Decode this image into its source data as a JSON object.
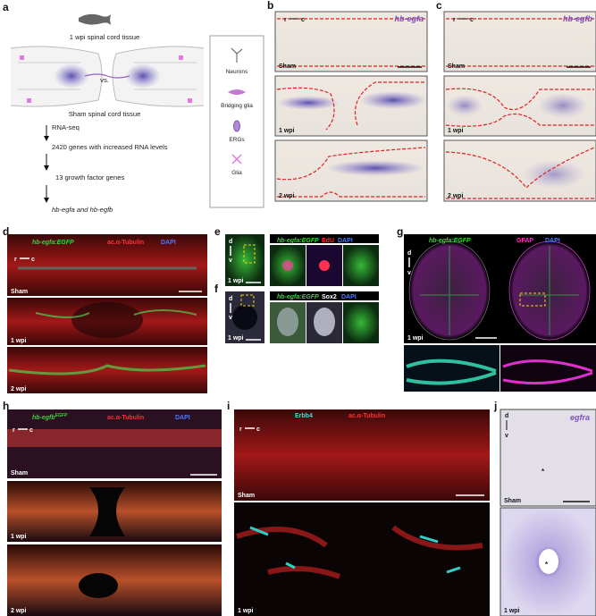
{
  "panels": {
    "a": {
      "label": "a",
      "fish_caption": "1 wpi spinal cord tissue",
      "vs": "vs.",
      "sham_caption": "Sham spinal cord tissue",
      "steps": [
        "RNA-seq",
        "2420 genes with increased RNA levels",
        "13 growth factor genes",
        "hb-egfa and hb-egfb"
      ],
      "legend": [
        "Neurons",
        "Bridging glia",
        "ERGs",
        "Glia"
      ]
    },
    "b": {
      "label": "b",
      "gene": "hb-egfa",
      "axis": [
        "r",
        "c"
      ],
      "rows": [
        "Sham",
        "1 wpi",
        "2 wpi"
      ]
    },
    "c": {
      "label": "c",
      "gene": "hb-egfb",
      "axis": [
        "r",
        "c"
      ],
      "rows": [
        "Sham",
        "1 wpi",
        "2 wpi"
      ]
    },
    "d": {
      "label": "d",
      "stains": [
        "hb-egfa:EGFP",
        "ac.α-Tubulin",
        "DAPI"
      ],
      "axis": [
        "r",
        "c"
      ],
      "rows": [
        "Sham",
        "1 wpi",
        "2 wpi"
      ]
    },
    "e": {
      "label": "e",
      "stains": [
        "hb-egfa:EGFP",
        "EdU",
        "DAPI"
      ],
      "axis": [
        "d",
        "v"
      ],
      "row": "1 wpi"
    },
    "f": {
      "label": "f",
      "stains": [
        "hb-egfa:EGFP",
        "Sox2",
        "DAPI"
      ],
      "axis": [
        "d",
        "v"
      ],
      "row": "1 wpi"
    },
    "g": {
      "label": "g",
      "stains": [
        "hb-egfa:EGFP",
        "GFAP",
        "DAPI"
      ],
      "axis": [
        "d",
        "v"
      ],
      "row": "1 wpi"
    },
    "h": {
      "label": "h",
      "stains": [
        "hb-egfb",
        "EGFP",
        "ac.α-Tubulin",
        "DAPI"
      ],
      "axis": [
        "r",
        "c"
      ],
      "rows": [
        "Sham",
        "1 wpi",
        "2 wpi"
      ]
    },
    "i": {
      "label": "i",
      "stains": [
        "Erbb4",
        "ac.α-Tubulin"
      ],
      "axis": [
        "r",
        "c"
      ],
      "rows": [
        "Sham",
        "1 wpi"
      ]
    },
    "j": {
      "label": "j",
      "gene": "egfra",
      "axis": [
        "d",
        "v"
      ],
      "rows": [
        "Sham",
        "1 wpi"
      ],
      "marker": "*"
    }
  }
}
